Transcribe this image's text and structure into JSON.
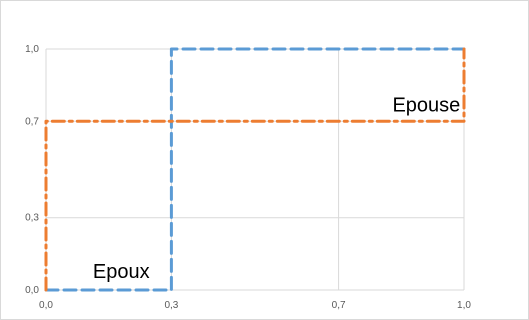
{
  "chart_data": {
    "type": "line",
    "title": "",
    "xlabel": "",
    "ylabel": "",
    "xlim": [
      0,
      1
    ],
    "ylim": [
      0,
      1
    ],
    "grid": true,
    "legend": "none",
    "x_ticks": [
      {
        "value": 0.0,
        "label": "0,0"
      },
      {
        "value": 0.3,
        "label": "0,3"
      },
      {
        "value": 0.7,
        "label": "0,7"
      },
      {
        "value": 1.0,
        "label": "1,0"
      }
    ],
    "y_ticks": [
      {
        "value": 0.0,
        "label": "0,0"
      },
      {
        "value": 0.3,
        "label": "0,3"
      },
      {
        "value": 0.7,
        "label": "0,7"
      },
      {
        "value": 1.0,
        "label": "1,0"
      }
    ],
    "series": [
      {
        "key": "epoux",
        "color": "#5b9bd5",
        "dash": "dashed",
        "points": [
          [
            0,
            0
          ],
          [
            0.3,
            0
          ],
          [
            0.3,
            1
          ],
          [
            1,
            1
          ]
        ]
      },
      {
        "key": "epouse",
        "color": "#ed7d31",
        "dash": "dash-dot",
        "points": [
          [
            0,
            0
          ],
          [
            0,
            0.7
          ],
          [
            1,
            0.7
          ],
          [
            1,
            1
          ]
        ]
      }
    ],
    "annotations": [
      {
        "text": "Epoux",
        "x": 0.18,
        "y": 0.05
      },
      {
        "text": "Epouse",
        "x": 0.91,
        "y": 0.74
      }
    ]
  }
}
